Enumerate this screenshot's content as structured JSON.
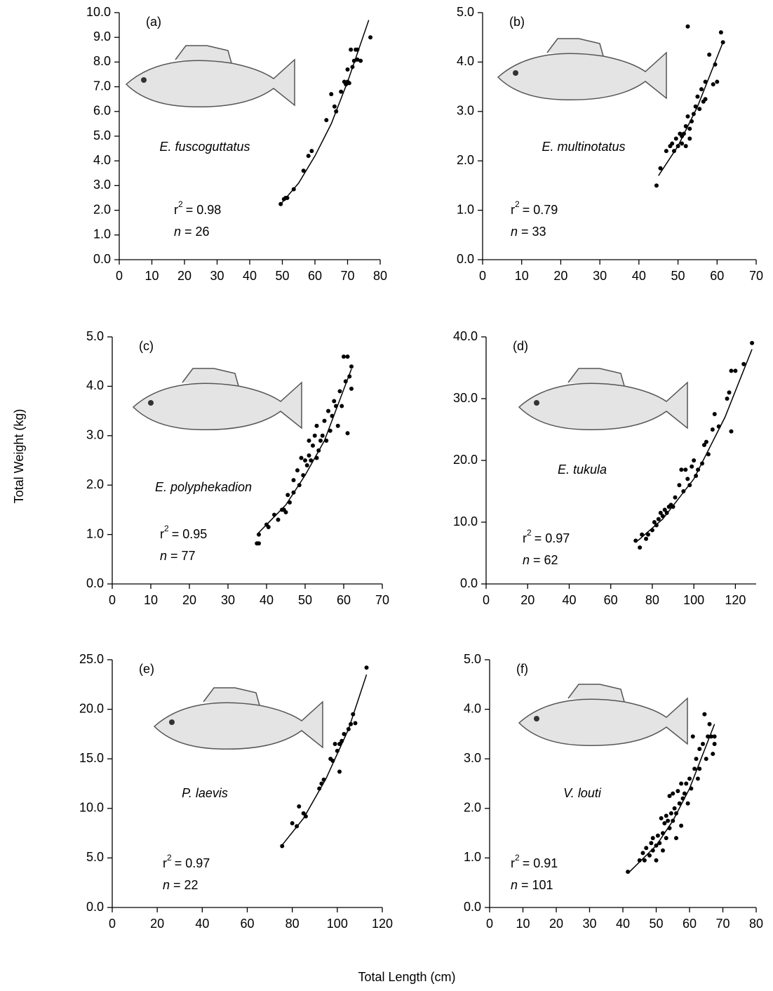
{
  "ylabel": "Total Weight (kg)",
  "xlabel": "Total Length (cm)",
  "chart_data": [
    {
      "type": "scatter",
      "panel": "(a)",
      "species": "E. fuscoguttatus",
      "r2": {
        "symbol": "r",
        "exponent": "2",
        "text": "= 0.98"
      },
      "n": {
        "symbol": "n",
        "text": "= 26"
      },
      "color": "#000000",
      "xlim": [
        0,
        80
      ],
      "xticks": [
        0,
        10,
        20,
        30,
        40,
        50,
        60,
        70,
        80
      ],
      "ylim": [
        0,
        10
      ],
      "yticks": [
        {
          "value": 0,
          "label": "0.0"
        },
        {
          "value": 1,
          "label": "1.0"
        },
        {
          "value": 2,
          "label": "2.0"
        },
        {
          "value": 3,
          "label": "3.0"
        },
        {
          "value": 4,
          "label": "4.0"
        },
        {
          "value": 5,
          "label": "5.0"
        },
        {
          "value": 6,
          "label": "6.0"
        },
        {
          "value": 7,
          "label": "7.0"
        },
        {
          "value": 8,
          "label": "8.0"
        },
        {
          "value": 9,
          "label": "9.0"
        },
        {
          "value": 10,
          "label": "10.0"
        }
      ],
      "points": {
        "x": [
          49.5,
          50.5,
          51,
          51.5,
          53.5,
          56.5,
          58,
          59,
          63.5,
          65,
          66,
          66.5,
          68,
          69,
          69.5,
          70,
          70,
          70.5,
          71,
          71.5,
          72,
          72.5,
          73,
          73,
          74,
          77
        ],
        "values": [
          2.25,
          2.45,
          2.5,
          2.5,
          2.85,
          3.6,
          4.2,
          4.4,
          5.65,
          6.7,
          6.2,
          6.0,
          6.8,
          7.2,
          7.1,
          7.7,
          7.2,
          7.15,
          8.5,
          7.8,
          8.05,
          8.5,
          8.1,
          8.5,
          8.05,
          9.0
        ]
      },
      "fit": {
        "x": [
          49.5,
          55,
          60,
          65,
          70,
          76.5
        ],
        "values": [
          2.25,
          3.1,
          4.2,
          5.5,
          7.2,
          9.7
        ]
      }
    },
    {
      "type": "scatter",
      "panel": "(b)",
      "species": "E. multinotatus",
      "r2": {
        "symbol": "r",
        "exponent": "2",
        "text": "= 0.79"
      },
      "n": {
        "symbol": "n",
        "text": "= 33"
      },
      "color": "#000000",
      "xlim": [
        0,
        70
      ],
      "xticks": [
        0,
        10,
        20,
        30,
        40,
        50,
        60,
        70
      ],
      "ylim": [
        0,
        5
      ],
      "yticks": [
        {
          "value": 0,
          "label": "0.0"
        },
        {
          "value": 1,
          "label": "1.0"
        },
        {
          "value": 2,
          "label": "2.0"
        },
        {
          "value": 3,
          "label": "3.0"
        },
        {
          "value": 4,
          "label": "4.0"
        },
        {
          "value": 5,
          "label": "5.0"
        }
      ],
      "points": {
        "x": [
          44.5,
          45.5,
          47,
          48,
          48.5,
          49,
          49.5,
          50,
          50.5,
          51,
          51,
          51.5,
          52,
          52,
          52.5,
          52.5,
          53,
          53,
          53.5,
          54,
          54.5,
          55,
          55.5,
          56,
          56.5,
          57,
          57,
          58,
          59,
          59.5,
          60,
          61,
          61.5
        ],
        "values": [
          1.5,
          1.85,
          2.2,
          2.3,
          2.35,
          2.2,
          2.45,
          2.3,
          2.55,
          2.5,
          2.35,
          2.55,
          2.3,
          2.7,
          2.9,
          4.72,
          2.45,
          2.65,
          2.8,
          2.95,
          3.1,
          3.3,
          3.05,
          3.45,
          3.2,
          3.6,
          3.25,
          4.15,
          3.55,
          3.95,
          3.6,
          4.6,
          4.4
        ]
      },
      "fit": {
        "x": [
          45,
          50,
          55,
          61.5
        ],
        "values": [
          1.7,
          2.3,
          3.1,
          4.4
        ]
      }
    },
    {
      "type": "scatter",
      "panel": "(c)",
      "species": "E. polyphekadion",
      "r2": {
        "symbol": "r",
        "exponent": "2",
        "text": "= 0.95"
      },
      "n": {
        "symbol": "n",
        "text": "= 77"
      },
      "color": "#000000",
      "xlim": [
        0,
        70
      ],
      "xticks": [
        0,
        10,
        20,
        30,
        40,
        50,
        60,
        70
      ],
      "ylim": [
        0,
        5
      ],
      "yticks": [
        {
          "value": 0,
          "label": "0.0"
        },
        {
          "value": 1,
          "label": "1.0"
        },
        {
          "value": 2,
          "label": "2.0"
        },
        {
          "value": 3,
          "label": "3.0"
        },
        {
          "value": 4,
          "label": "4.0"
        },
        {
          "value": 5,
          "label": "5.0"
        }
      ],
      "points": {
        "x": [
          37.5,
          38,
          38,
          40,
          40.5,
          42,
          43,
          44,
          44.5,
          45,
          45.5,
          46,
          47,
          47,
          48,
          48.5,
          49,
          49.5,
          50,
          50.5,
          51,
          51,
          51.5,
          52,
          52.5,
          53,
          53,
          53.5,
          54,
          54.5,
          55,
          55.5,
          56,
          56.5,
          57,
          57.5,
          58,
          58.5,
          59,
          59.5,
          60,
          60.5,
          61,
          61,
          61.5,
          62,
          62
        ],
        "values": [
          0.82,
          0.82,
          1.0,
          1.2,
          1.15,
          1.4,
          1.3,
          1.5,
          1.5,
          1.45,
          1.8,
          1.65,
          2.1,
          1.85,
          2.3,
          2.0,
          2.55,
          2.2,
          2.5,
          2.4,
          2.6,
          2.9,
          2.5,
          2.8,
          3.0,
          2.55,
          3.2,
          2.7,
          2.9,
          3.0,
          3.3,
          2.9,
          3.5,
          3.1,
          3.4,
          3.7,
          3.6,
          3.2,
          3.9,
          3.6,
          4.6,
          4.1,
          4.6,
          3.05,
          4.2,
          4.4,
          3.95
        ]
      },
      "fit": {
        "x": [
          37.5,
          45,
          50,
          55,
          62
        ],
        "values": [
          1.0,
          1.6,
          2.2,
          2.9,
          4.35
        ]
      }
    },
    {
      "type": "scatter",
      "panel": "(d)",
      "species": "E. tukula",
      "r2": {
        "symbol": "r",
        "exponent": "2",
        "text": "= 0.97"
      },
      "n": {
        "symbol": "n",
        "text": "= 62"
      },
      "color": "#000000",
      "xlim": [
        0,
        130
      ],
      "xticks": [
        0,
        20,
        40,
        60,
        80,
        100,
        120
      ],
      "ylim": [
        0,
        40
      ],
      "yticks": [
        {
          "value": 0,
          "label": "0.0"
        },
        {
          "value": 10,
          "label": "10.0"
        },
        {
          "value": 20,
          "label": "20.0"
        },
        {
          "value": 30,
          "label": "30.0"
        },
        {
          "value": 40,
          "label": "40.0"
        }
      ],
      "points": {
        "x": [
          72,
          74,
          75,
          77,
          78,
          80,
          81,
          82,
          83,
          84,
          85,
          86,
          87,
          88,
          89,
          90,
          91,
          93,
          94,
          95,
          96,
          97,
          98,
          99,
          100,
          101,
          102,
          104,
          105,
          106,
          107,
          109,
          110,
          112,
          116,
          117,
          118,
          118,
          120,
          124,
          128
        ],
        "values": [
          7.0,
          5.9,
          8.0,
          7.3,
          8.0,
          8.7,
          10.0,
          9.5,
          10.5,
          11.5,
          11.0,
          12.0,
          11.5,
          12.5,
          12.8,
          12.5,
          14.0,
          16.0,
          18.5,
          15.0,
          18.5,
          17.0,
          16.0,
          19.0,
          20.0,
          17.5,
          18.5,
          19.5,
          22.5,
          23.0,
          21.0,
          25.0,
          27.5,
          25.5,
          30.0,
          31.0,
          34.5,
          24.7,
          34.5,
          35.6,
          39.0
        ]
      },
      "fit": {
        "x": [
          73,
          85,
          100,
          115,
          128
        ],
        "values": [
          7.0,
          10.5,
          17.0,
          27,
          38
        ]
      }
    },
    {
      "type": "scatter",
      "panel": "(e)",
      "species": "P. laevis",
      "r2": {
        "symbol": "r",
        "exponent": "2",
        "text": "= 0.97"
      },
      "n": {
        "symbol": "n",
        "text": "= 22"
      },
      "color": "#000000",
      "xlim": [
        0,
        120
      ],
      "xticks": [
        0,
        20,
        40,
        60,
        80,
        100,
        120
      ],
      "ylim": [
        0,
        25
      ],
      "yticks": [
        {
          "value": 0,
          "label": "0.0"
        },
        {
          "value": 5,
          "label": "5.0"
        },
        {
          "value": 10,
          "label": "10.0"
        },
        {
          "value": 15,
          "label": "15.0"
        },
        {
          "value": 20,
          "label": "20.0"
        },
        {
          "value": 25,
          "label": "25.0"
        }
      ],
      "points": {
        "x": [
          75.5,
          80,
          82,
          83,
          85,
          86,
          92,
          93,
          94,
          97,
          98,
          99,
          100,
          101,
          101,
          102,
          103,
          105,
          106,
          107,
          108,
          113
        ],
        "values": [
          6.2,
          8.5,
          8.2,
          10.2,
          9.5,
          9.2,
          12.0,
          12.5,
          12.9,
          15.0,
          14.8,
          16.5,
          15.8,
          16.5,
          13.7,
          16.8,
          17.5,
          18.0,
          18.5,
          19.5,
          18.6,
          24.2
        ]
      },
      "fit": {
        "x": [
          75.5,
          85,
          95,
          105,
          113
        ],
        "values": [
          6.3,
          9.0,
          13.0,
          18.0,
          23.5
        ]
      }
    },
    {
      "type": "scatter",
      "panel": "(f)",
      "species": "V. louti",
      "r2": {
        "symbol": "r",
        "exponent": "2",
        "text": "= 0.91"
      },
      "n": {
        "symbol": "n",
        "text": "= 101"
      },
      "color": "#000000",
      "xlim": [
        0,
        80
      ],
      "xticks": [
        0,
        10,
        20,
        30,
        40,
        50,
        60,
        70,
        80
      ],
      "ylim": [
        0,
        5
      ],
      "yticks": [
        {
          "value": 0,
          "label": "0.0"
        },
        {
          "value": 1,
          "label": "1.0"
        },
        {
          "value": 2,
          "label": "2.0"
        },
        {
          "value": 3,
          "label": "3.0"
        },
        {
          "value": 4,
          "label": "4.0"
        },
        {
          "value": 5,
          "label": "5.0"
        }
      ],
      "points": {
        "x": [
          41.5,
          45,
          46,
          46.5,
          47,
          48,
          48.5,
          49,
          49,
          50,
          50,
          50.5,
          51,
          51.5,
          52,
          52,
          52.5,
          53,
          53,
          53.5,
          54,
          54,
          54.5,
          55,
          55,
          55.5,
          56,
          56,
          56.5,
          57,
          57.5,
          57.5,
          58,
          58.5,
          59,
          59.5,
          60,
          60.5,
          61,
          61.5,
          62,
          62.5,
          63,
          63,
          64,
          64.5,
          65,
          65.5,
          66,
          66.5,
          67,
          67.5,
          67.5
        ],
        "values": [
          0.72,
          0.95,
          1.1,
          0.95,
          1.2,
          1.05,
          1.3,
          1.4,
          1.15,
          1.25,
          0.95,
          1.45,
          1.3,
          1.8,
          1.5,
          1.15,
          1.7,
          1.85,
          1.4,
          1.75,
          2.25,
          1.6,
          1.9,
          1.75,
          2.3,
          2.0,
          1.9,
          1.4,
          2.35,
          2.1,
          2.5,
          1.65,
          2.2,
          2.3,
          2.5,
          2.1,
          2.6,
          2.4,
          3.45,
          2.8,
          3.0,
          2.6,
          3.2,
          2.8,
          3.3,
          3.9,
          3.0,
          3.45,
          3.7,
          3.45,
          3.1,
          3.45,
          3.3
        ]
      },
      "fit": {
        "x": [
          42,
          50,
          55,
          60,
          67.5
        ],
        "values": [
          0.72,
          1.25,
          1.75,
          2.4,
          3.7
        ]
      }
    }
  ]
}
